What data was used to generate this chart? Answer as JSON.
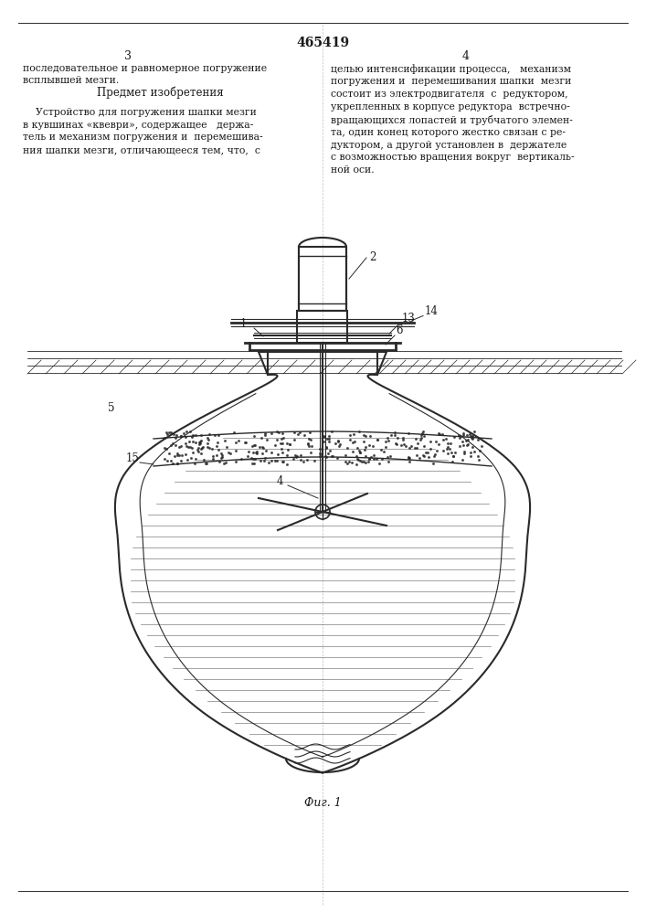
{
  "patent_number": "465419",
  "col_left_num": "3",
  "col_right_num": "4",
  "text_top_left": "последовательное и равномерное погружение\nвсплывшей мезги.",
  "text_predmet": "Предмет изобретения",
  "text_body_left": "    Устройство для погружения шапки мезги\nв кувшинах «квеври», содержащее   держа-\nтель и механизм погружения и  перемешива-\nния шапки мезги, отличающееся тем, что,  с",
  "text_body_right": "целью интенсификации процесса,   механизм\nпогружения и  перемешивания шапки  мезги\nсостоит из электродвигателя  с  редуктором,\nукрепленных в корпусе редуктора  встречно-\nвращающихся лопастей и трубчатого элемен-\nта, один конец которого жестко связан с ре-\nдуктором, а другой установлен в  держателе\nс возможностью вращения вокруг  вертикаль-\nной оси.",
  "fig_caption": "Фиг. 1",
  "background_color": "#ffffff",
  "text_color": "#1a1a1a",
  "line_color": "#2a2a2a",
  "label_fontsize": 8.5,
  "body_fontsize": 8.0
}
